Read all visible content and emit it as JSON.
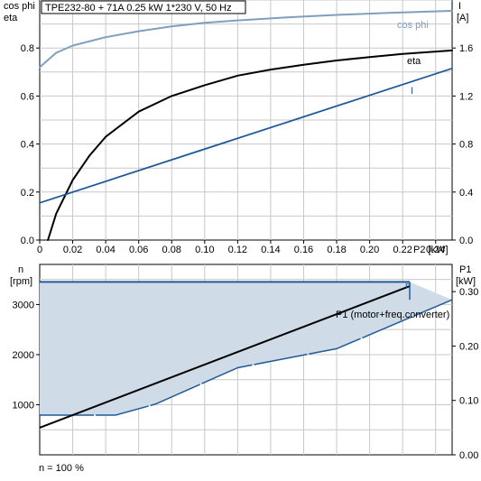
{
  "header": {
    "title": "TPE232-80 + 71A   0.25 kW   1*230 V, 50 Hz"
  },
  "colors": {
    "cos_phi": "#7f9fbf",
    "eta": "#000000",
    "current": "#1f5a99",
    "speed": "#1f5a99",
    "speed_fill": "#cfdbe6",
    "power_converter": "#000000",
    "power_motor": "#1f5a99",
    "grid": "#c8c8c8"
  },
  "footer": {
    "note": "n = 100 %"
  },
  "chart_data": [
    {
      "type": "line",
      "y_left_label_1": "cos phi",
      "y_left_label_2": "eta",
      "y_right_label_1": "I",
      "y_right_label_2": "[A]",
      "x_label": "P2 [kW]",
      "xlim": [
        0,
        0.25
      ],
      "ylim_left": [
        0,
        1.0
      ],
      "ylim_right": [
        0,
        2.0
      ],
      "x_ticks": [
        0,
        0.02,
        0.04,
        0.06,
        0.08,
        0.1,
        0.12,
        0.14,
        0.16,
        0.18,
        0.2,
        0.22,
        0.24
      ],
      "x_tick_labels": [
        "0",
        "0.02",
        "0.04",
        "0.06",
        "0.08",
        "0.10",
        "0.12",
        "0.14",
        "0.16",
        "0.18",
        "0.20",
        "0.22",
        "0.24"
      ],
      "y_left_ticks": [
        0,
        0.2,
        0.4,
        0.6,
        0.8
      ],
      "y_left_tick_labels": [
        "0.0",
        "0.2",
        "0.4",
        "0.6",
        "0.8"
      ],
      "y_right_ticks": [
        0,
        0.4,
        0.8,
        1.2,
        1.6
      ],
      "y_right_tick_labels": [
        "0.0",
        "0.4",
        "0.8",
        "1.2",
        "1.6"
      ],
      "grid": true,
      "series": [
        {
          "name": "cos phi",
          "axis": "left",
          "x": [
            0,
            0.01,
            0.02,
            0.04,
            0.06,
            0.08,
            0.1,
            0.12,
            0.15,
            0.18,
            0.21,
            0.25
          ],
          "y": [
            0.72,
            0.78,
            0.81,
            0.845,
            0.87,
            0.89,
            0.905,
            0.915,
            0.928,
            0.938,
            0.946,
            0.955
          ]
        },
        {
          "name": "eta",
          "axis": "left",
          "x": [
            0.005,
            0.01,
            0.02,
            0.03,
            0.04,
            0.06,
            0.08,
            0.1,
            0.12,
            0.14,
            0.16,
            0.18,
            0.2,
            0.22,
            0.25
          ],
          "y": [
            0.0,
            0.11,
            0.25,
            0.35,
            0.43,
            0.535,
            0.6,
            0.645,
            0.685,
            0.71,
            0.73,
            0.748,
            0.762,
            0.775,
            0.79
          ]
        },
        {
          "name": "I",
          "axis": "right",
          "x": [
            0,
            0.25
          ],
          "y": [
            0.31,
            1.43
          ]
        }
      ]
    },
    {
      "type": "area",
      "y_left_label_1": "n",
      "y_left_label_2": "[rpm]",
      "y_right_label_1": "P1",
      "y_right_label_2": "[kW]",
      "xlim": [
        0,
        0.25
      ],
      "ylim_left": [
        0,
        3800
      ],
      "ylim_right": [
        0,
        0.35
      ],
      "x_ticks": [
        0,
        0.02,
        0.04,
        0.06,
        0.08,
        0.1,
        0.12,
        0.14,
        0.16,
        0.18,
        0.2,
        0.22,
        0.24
      ],
      "y_left_ticks": [
        1000,
        2000,
        3000
      ],
      "y_left_tick_labels": [
        "1000",
        "2000",
        "3000"
      ],
      "y_right_ticks": [
        0.0,
        0.1,
        0.2,
        0.3
      ],
      "y_right_tick_labels": [
        "0.00",
        "0.10",
        "0.20",
        "0.30"
      ],
      "grid": true,
      "series": [
        {
          "name": "n",
          "axis": "left",
          "x": [
            0,
            0.25
          ],
          "y": [
            3450,
            3450
          ]
        },
        {
          "name": "P1 (motor+freq.converter)",
          "axis": "right",
          "x": [
            0,
            0.25
          ],
          "y": [
            0.05,
            0.31
          ]
        },
        {
          "name": "",
          "axis": "right",
          "x": [
            0,
            0.046,
            0.07,
            0.12,
            0.18,
            0.25
          ],
          "y": [
            0.073,
            0.073,
            0.093,
            0.16,
            0.195,
            0.285
          ]
        }
      ]
    }
  ]
}
